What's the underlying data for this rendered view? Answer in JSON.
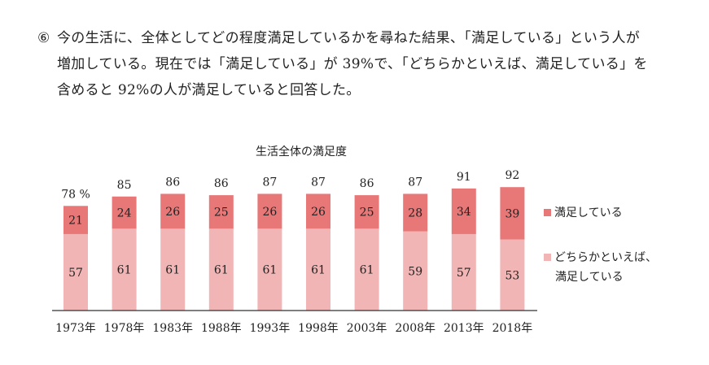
{
  "paragraph": {
    "marker": "⑥",
    "line1": "今の生活に、全体としてどの程度満足しているかを尋ねた結果、「満足している」という人が",
    "line2": "増加している。現在では「満足している」が 39%で、「どちらかといえば、満足している」を",
    "line3": "含めると 92%の人が満足していると回答した。"
  },
  "chart_data": {
    "type": "bar",
    "stacked": true,
    "title": "生活全体の満足度",
    "categories": [
      "1973年",
      "1978年",
      "1983年",
      "1988年",
      "1993年",
      "1998年",
      "2003年",
      "2008年",
      "2013年",
      "2018年"
    ],
    "series": [
      {
        "name": "どちらかといえば、満足している",
        "color": "#f2b5b5",
        "values": [
          57,
          61,
          61,
          61,
          61,
          61,
          61,
          59,
          57,
          53
        ]
      },
      {
        "name": "満足している",
        "color": "#e87878",
        "values": [
          21,
          24,
          26,
          25,
          26,
          26,
          25,
          28,
          34,
          39
        ]
      }
    ],
    "totals": [
      78,
      85,
      86,
      86,
      87,
      87,
      86,
      87,
      91,
      92
    ],
    "first_total_suffix": "%",
    "ylim": [
      0,
      100
    ],
    "xlabel": "",
    "ylabel": "",
    "grid": false,
    "legend_position": "right"
  },
  "legend": {
    "item1": "満足している",
    "item2_line1": "どちらかといえば、",
    "item2_line2": "満足している"
  }
}
